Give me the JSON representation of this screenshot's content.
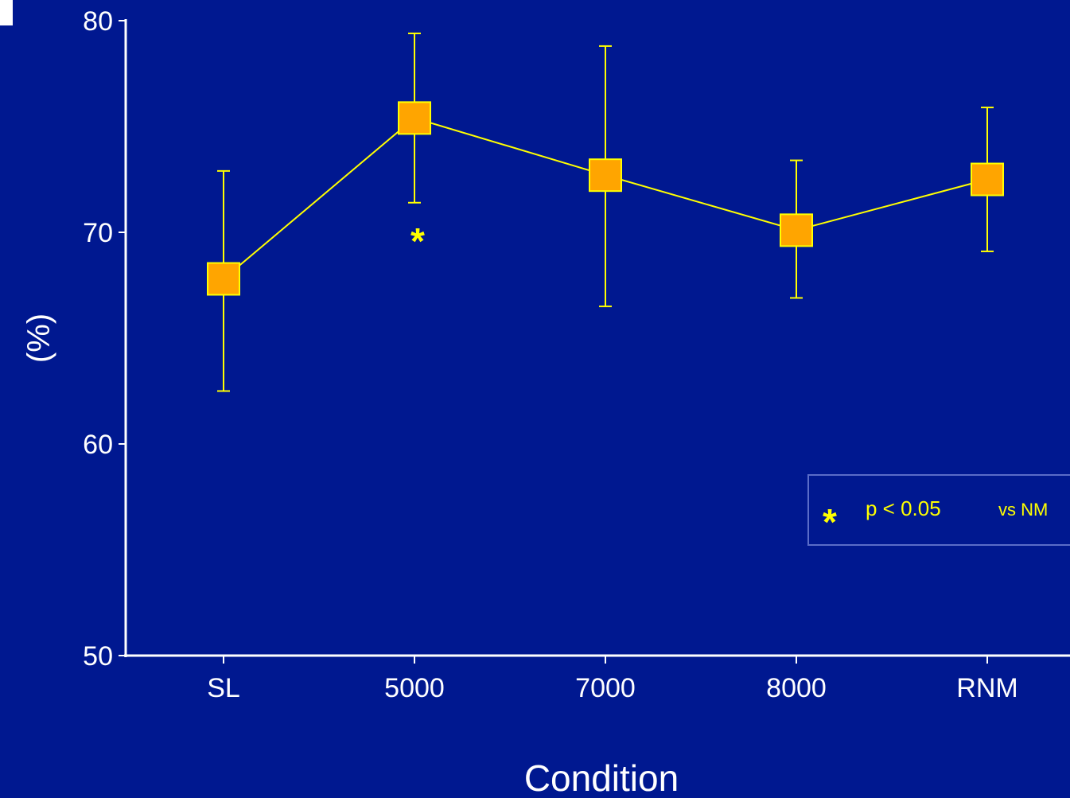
{
  "chart_data": {
    "type": "line",
    "categories": [
      "SL",
      "5000",
      "7000",
      "8000",
      "RNM"
    ],
    "series": [
      {
        "values": [
          67.8,
          75.4,
          72.7,
          70.1,
          72.5
        ],
        "error_low": [
          62.5,
          71.4,
          66.5,
          66.9,
          69.1
        ],
        "error_high": [
          72.9,
          79.4,
          78.8,
          73.4,
          75.9
        ]
      }
    ],
    "significance_markers": [
      {
        "category": "5000",
        "symbol": "*"
      }
    ],
    "xlabel": "Condition",
    "ylabel": "(%)",
    "ylim": [
      50,
      80
    ],
    "yticks": [
      50,
      60,
      70,
      80
    ],
    "grid": false,
    "legend": {
      "position": "right",
      "symbol": "*",
      "text": "p < 0.05",
      "suffix": "vs NM"
    },
    "colors": {
      "background": "#001890",
      "line": "#ffff00",
      "marker_fill": "#ffa500",
      "marker_stroke": "#ffff00",
      "axis": "#ffffff",
      "text": "#ffffff",
      "annotation": "#ffff00"
    }
  }
}
